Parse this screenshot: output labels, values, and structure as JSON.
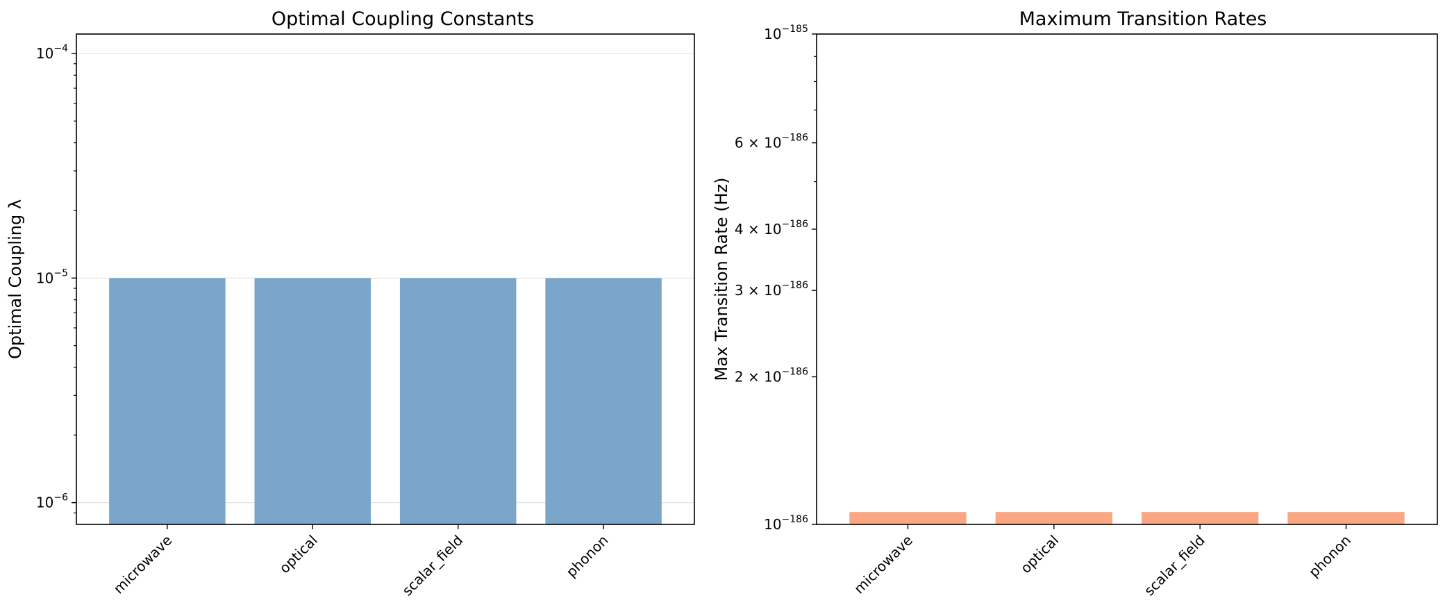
{
  "chart_data": [
    {
      "type": "bar",
      "title": "Optimal Coupling Constants",
      "xlabel": "",
      "ylabel": "Optimal Coupling λ",
      "yscale": "log",
      "categories": [
        "microwave",
        "optical",
        "scalar_field",
        "phonon"
      ],
      "values": [
        1e-05,
        1e-05,
        1e-05,
        1e-05
      ],
      "ylim": [
        8e-07,
        0.000122
      ],
      "color": "#7ba6ca",
      "grid": "y",
      "legend": "none",
      "yticks": [
        {
          "value": 1e-06,
          "base": "10",
          "exp": "−6"
        },
        {
          "value": 1e-05,
          "base": "10",
          "exp": "−5"
        },
        {
          "value": 0.0001,
          "base": "10",
          "exp": "−4"
        }
      ]
    },
    {
      "type": "bar",
      "title": "Maximum Transition Rates",
      "xlabel": "",
      "ylabel": "Max Transition Rate (Hz)",
      "yscale": "log",
      "categories": [
        "microwave",
        "optical",
        "scalar_field",
        "phonon"
      ],
      "values": [
        1.06e-186,
        1.06e-186,
        1.06e-186,
        1.06e-186
      ],
      "ylim": [
        1e-186,
        1e-185
      ],
      "color": "#fca783",
      "grid": "none",
      "legend": "none",
      "yticks": [
        {
          "value": 1e-186,
          "base": "10",
          "exp": "−186"
        },
        {
          "value": 2e-186,
          "base": "2 × 10",
          "exp": "−186"
        },
        {
          "value": 3e-186,
          "base": "3 × 10",
          "exp": "−186"
        },
        {
          "value": 4e-186,
          "base": "4 × 10",
          "exp": "−186"
        },
        {
          "value": 6e-186,
          "base": "6 × 10",
          "exp": "−186"
        },
        {
          "value": 1e-185,
          "base": "10",
          "exp": "−185"
        }
      ]
    }
  ]
}
